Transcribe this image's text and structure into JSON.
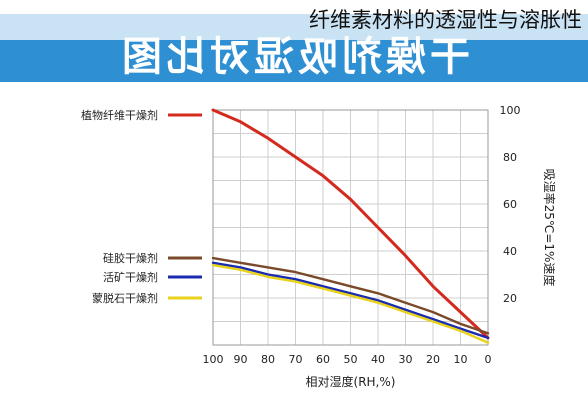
{
  "caption": "纤维素材料的透湿性与溶胀性",
  "banner_title": "干燥剂吸湿对比图",
  "chart_data": {
    "type": "line",
    "xlabel": "相对湿度(RH,%)",
    "ylabel": "吸湿率25℃=1%速度",
    "x_ticks": [
      100,
      90,
      80,
      70,
      60,
      50,
      40,
      30,
      20,
      10,
      0
    ],
    "y_ticks": [
      100,
      80,
      60,
      40,
      20
    ],
    "xlim": [
      0,
      100
    ],
    "ylim": [
      0,
      100
    ],
    "grid": true,
    "legend": "left",
    "series": [
      {
        "name": "植物纤维干燥剂",
        "color": "#d42a1e",
        "x": [
          100,
          90,
          80,
          70,
          60,
          50,
          40,
          30,
          20,
          10,
          0
        ],
        "y": [
          100,
          95,
          88,
          80,
          72,
          62,
          50,
          38,
          25,
          14,
          3
        ]
      },
      {
        "name": "硅胶干燥剂",
        "color": "#7a4a2a",
        "x": [
          100,
          90,
          80,
          70,
          60,
          50,
          40,
          30,
          20,
          10,
          0
        ],
        "y": [
          37,
          35,
          33,
          31,
          28,
          25,
          22,
          18,
          14,
          9,
          5
        ]
      },
      {
        "name": "活矿干燥剂",
        "color": "#1a2bb0",
        "x": [
          100,
          90,
          80,
          70,
          60,
          50,
          40,
          30,
          20,
          10,
          0
        ],
        "y": [
          35,
          33,
          30,
          28,
          25,
          22,
          19,
          15,
          11,
          7,
          3
        ]
      },
      {
        "name": "蒙脱石干燥剂",
        "color": "#e8d21c",
        "x": [
          100,
          90,
          80,
          70,
          60,
          50,
          40,
          30,
          20,
          10,
          0
        ],
        "y": [
          34,
          32,
          29,
          27,
          24,
          21,
          18,
          14,
          10,
          6,
          1
        ]
      }
    ]
  }
}
